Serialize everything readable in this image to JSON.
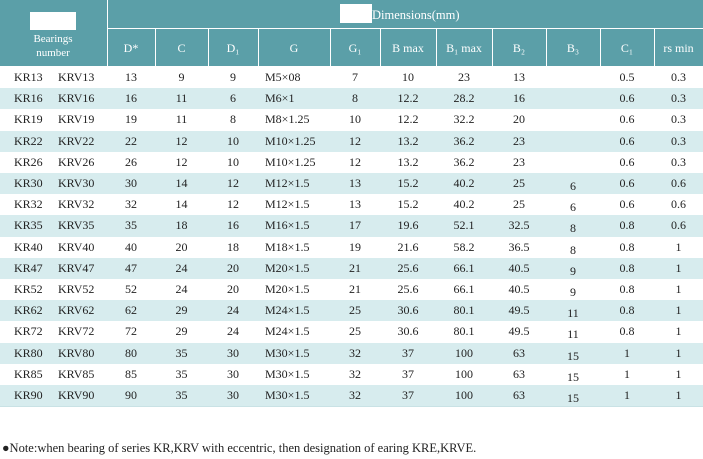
{
  "header": {
    "bearings": "Bearings number",
    "dimensions": "Dimensions(mm)",
    "columns": [
      "D*",
      "C",
      "D₁",
      "G",
      "G₁",
      "B max",
      "B₁ max",
      "B₂",
      "B₃",
      "C₁",
      "rs min"
    ]
  },
  "table": {
    "rows": [
      [
        "KR13",
        "KRV13",
        "13",
        "9",
        "9",
        "M5×08",
        "7",
        "10",
        "23",
        "13",
        null,
        "0.5",
        "0.3"
      ],
      [
        "KR16",
        "KRV16",
        "16",
        "11",
        "6",
        "M6×1",
        "8",
        "12.2",
        "28.2",
        "16",
        null,
        "0.6",
        "0.3"
      ],
      [
        "KR19",
        "KRV19",
        "19",
        "11",
        "8",
        "M8×1.25",
        "10",
        "12.2",
        "32.2",
        "20",
        null,
        "0.6",
        "0.3"
      ],
      [
        "KR22",
        "KRV22",
        "22",
        "12",
        "10",
        "M10×1.25",
        "12",
        "13.2",
        "36.2",
        "23",
        null,
        "0.6",
        "0.3"
      ],
      [
        "KR26",
        "KRV26",
        "26",
        "12",
        "10",
        "M10×1.25",
        "12",
        "13.2",
        "36.2",
        "23",
        null,
        "0.6",
        "0.3"
      ],
      [
        "KR30",
        "KRV30",
        "30",
        "14",
        "12",
        "M12×1.5",
        "13",
        "15.2",
        "40.2",
        "25",
        "6",
        "0.6",
        "0.6"
      ],
      [
        "KR32",
        "KRV32",
        "32",
        "14",
        "12",
        "M12×1.5",
        "13",
        "15.2",
        "40.2",
        "25",
        "6",
        "0.6",
        "0.6"
      ],
      [
        "KR35",
        "KRV35",
        "35",
        "18",
        "16",
        "M16×1.5",
        "17",
        "19.6",
        "52.1",
        "32.5",
        "8",
        "0.8",
        "0.6"
      ],
      [
        "KR40",
        "KRV40",
        "40",
        "20",
        "18",
        "M18×1.5",
        "19",
        "21.6",
        "58.2",
        "36.5",
        "8",
        "0.8",
        "1"
      ],
      [
        "KR47",
        "KRV47",
        "47",
        "24",
        "20",
        "M20×1.5",
        "21",
        "25.6",
        "66.1",
        "40.5",
        "9",
        "0.8",
        "1"
      ],
      [
        "KR52",
        "KRV52",
        "52",
        "24",
        "20",
        "M20×1.5",
        "21",
        "25.6",
        "66.1",
        "40.5",
        "9",
        "0.8",
        "1"
      ],
      [
        "KR62",
        "KRV62",
        "62",
        "29",
        "24",
        "M24×1.5",
        "25",
        "30.6",
        "80.1",
        "49.5",
        "11",
        "0.8",
        "1"
      ],
      [
        "KR72",
        "KRV72",
        "72",
        "29",
        "24",
        "M24×1.5",
        "25",
        "30.6",
        "80.1",
        "49.5",
        "11",
        "0.8",
        "1"
      ],
      [
        "KR80",
        "KRV80",
        "80",
        "35",
        "30",
        "M30×1.5",
        "32",
        "37",
        "100",
        "63",
        "15",
        "1",
        "1"
      ],
      [
        "KR85",
        "KRV85",
        "85",
        "35",
        "30",
        "M30×1.5",
        "32",
        "37",
        "100",
        "63",
        "15",
        "1",
        "1"
      ],
      [
        "KR90",
        "KRV90",
        "90",
        "35",
        "30",
        "M30×1.5",
        "32",
        "37",
        "100",
        "63",
        "15",
        "1",
        "1"
      ]
    ]
  },
  "note": "●Note:when bearing of series KR,KRV with eccentric, then designation of earing KRE,KRVE."
}
